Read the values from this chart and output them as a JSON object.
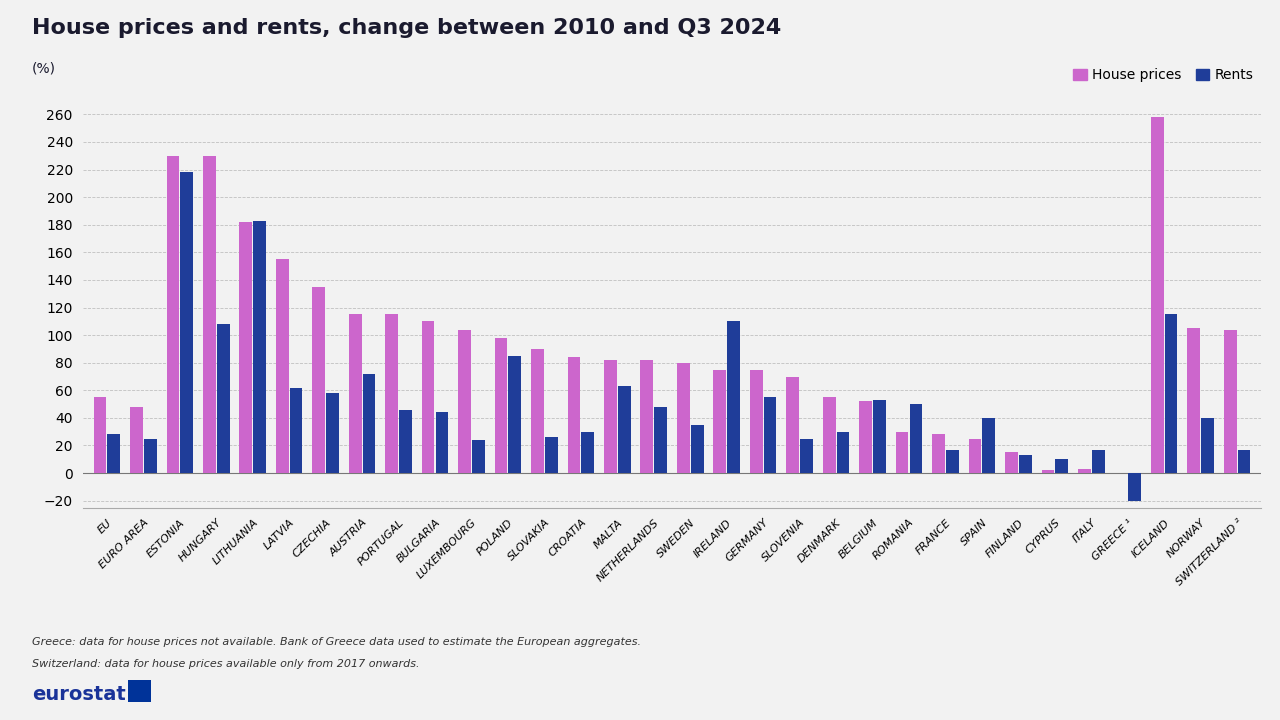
{
  "title": "House prices and rents, change between 2010 and Q3 2024",
  "pct_label": "(%)",
  "background_color": "#f2f2f2",
  "plot_background": "#f2f2f2",
  "house_price_color": "#cc66cc",
  "rent_color": "#1f3d99",
  "categories": [
    "EU",
    "EURO AREA",
    "ESTONIA",
    "HUNGARY",
    "LITHUANIA",
    "LATVIA",
    "CZECHIA",
    "AUSTRIA",
    "PORTUGAL",
    "BULGARIA",
    "LUXEMBOURG",
    "POLAND",
    "SLOVAKIA",
    "CROATIA",
    "MALTA",
    "NETHERLANDS",
    "SWEDEN",
    "IRELAND",
    "GERMANY",
    "SLOVENIA",
    "DENMARK",
    "BELGIUM",
    "ROMANIA",
    "FRANCE",
    "SPAIN",
    "FINLAND",
    "CYPRUS",
    "ITALY",
    "GREECE ¹",
    "ICELAND",
    "NORWAY",
    "SWITZERLAND ²"
  ],
  "house_prices": [
    55,
    48,
    230,
    230,
    182,
    155,
    135,
    115,
    115,
    110,
    104,
    98,
    90,
    84,
    82,
    82,
    80,
    75,
    75,
    70,
    55,
    52,
    30,
    28,
    25,
    15,
    2,
    3,
    null,
    258,
    105,
    104
  ],
  "rents": [
    28,
    25,
    218,
    108,
    183,
    62,
    58,
    72,
    46,
    44,
    24,
    85,
    26,
    30,
    63,
    48,
    35,
    110,
    55,
    25,
    30,
    53,
    50,
    17,
    40,
    13,
    10,
    17,
    -20,
    115,
    40,
    17
  ],
  "footnote1": "Greece: data for house prices not available. Bank of Greece data used to estimate the European aggregates.",
  "footnote2": "Switzerland: data for house prices available only from 2017 onwards.",
  "ylim_min": -25,
  "ylim_max": 275,
  "yticks": [
    0,
    20,
    40,
    60,
    80,
    100,
    120,
    140,
    160,
    180,
    200,
    220,
    240,
    260
  ],
  "bar_width": 0.35,
  "bar_gap": 0.03
}
